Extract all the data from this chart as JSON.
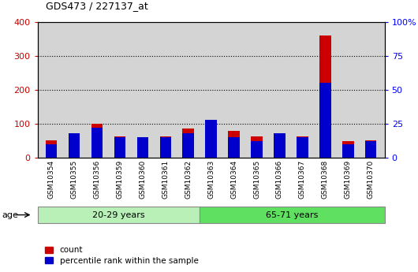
{
  "title": "GDS473 / 227137_at",
  "samples": [
    "GSM10354",
    "GSM10355",
    "GSM10356",
    "GSM10359",
    "GSM10360",
    "GSM10361",
    "GSM10362",
    "GSM10363",
    "GSM10364",
    "GSM10365",
    "GSM10366",
    "GSM10367",
    "GSM10368",
    "GSM10369",
    "GSM10370"
  ],
  "count_values": [
    52,
    65,
    100,
    62,
    58,
    62,
    87,
    70,
    78,
    62,
    62,
    62,
    360,
    48,
    52
  ],
  "percentile_values": [
    10,
    18,
    22,
    15,
    15,
    15,
    18,
    28,
    15,
    12,
    18,
    15,
    55,
    10,
    12
  ],
  "group1_label": "20-29 years",
  "group2_label": "65-71 years",
  "group1_count": 7,
  "group2_count": 8,
  "group1_color": "#b8f0b8",
  "group2_color": "#60e060",
  "bar_color_count": "#cc0000",
  "bar_color_pct": "#0000cc",
  "ylim_left": [
    0,
    400
  ],
  "ylim_right": [
    0,
    100
  ],
  "yticks_left": [
    0,
    100,
    200,
    300,
    400
  ],
  "yticks_right": [
    0,
    25,
    50,
    75,
    100
  ],
  "ytick_labels_right": [
    "0",
    "25",
    "50",
    "75",
    "100%"
  ],
  "age_label": "age",
  "legend_count": "count",
  "legend_pct": "percentile rank within the sample",
  "plot_bg_color": "#d4d4d4",
  "xtick_bg_color": "#d4d4d4"
}
